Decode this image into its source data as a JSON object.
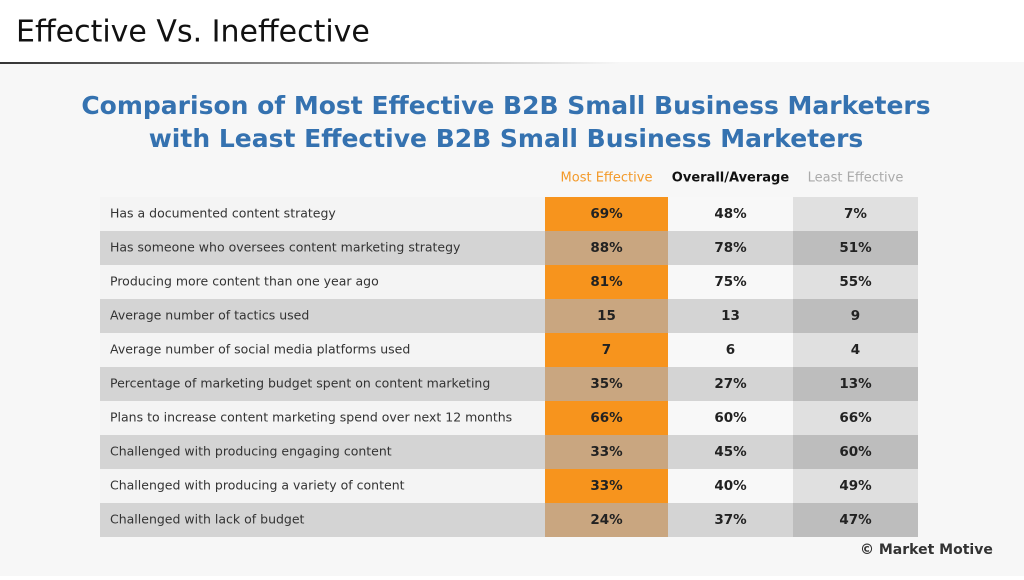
{
  "header": {
    "title": "Effective Vs. Ineffective"
  },
  "table": {
    "title": [
      "Comparison of Most Effective B2B Small Business Marketers",
      "with Least Effective B2B Small Business Marketers"
    ],
    "columns": [
      "Most Effective",
      "Overall/Average",
      "Least Effective"
    ],
    "rows": [
      [
        "Has a documented content strategy",
        "69%",
        "48%",
        "7%"
      ],
      [
        "Has someone who oversees content marketing strategy",
        "88%",
        "78%",
        "51%"
      ],
      [
        "Producing more content than one year ago",
        "81%",
        "75%",
        "55%"
      ],
      [
        "Average number of tactics used",
        "15",
        "13",
        "9"
      ],
      [
        "Average number of social media platforms used",
        "7",
        "6",
        "4"
      ],
      [
        "Percentage of marketing budget spent on content marketing",
        "35%",
        "27%",
        "13%"
      ],
      [
        "Plans to increase content marketing spend over next 12 months",
        "66%",
        "60%",
        "66%"
      ],
      [
        "Challenged with producing engaging content",
        "33%",
        "45%",
        "60%"
      ],
      [
        "Challenged with producing a variety of content",
        "33%",
        "40%",
        "49%"
      ],
      [
        "Challenged with lack of budget",
        "24%",
        "37%",
        "47%"
      ]
    ]
  },
  "footer": {
    "credit": "© Market Motive"
  }
}
